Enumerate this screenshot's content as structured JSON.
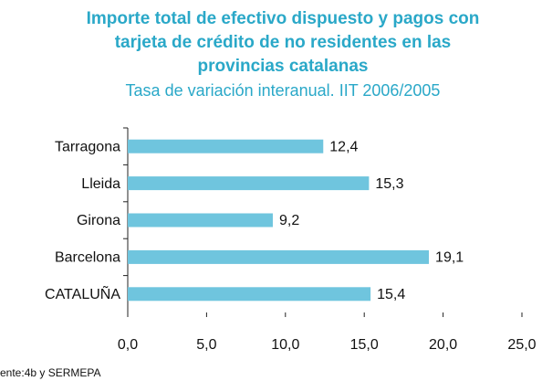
{
  "chart_data": {
    "type": "bar",
    "orientation": "horizontal",
    "title": [
      "Importe total de efectivo dispuesto y pagos con",
      "tarjeta de crédito de no residentes en las",
      "provincias catalanas"
    ],
    "subtitle": "Tasa de variación interanual. IIT 2006/2005",
    "categories": [
      "Tarragona",
      "Lleida",
      "Girona",
      "Barcelona",
      "CATALUÑA"
    ],
    "values": [
      12.4,
      15.3,
      9.2,
      19.1,
      15.4
    ],
    "value_labels": [
      "12,4",
      "15,3",
      "9,2",
      "19,1",
      "15,4"
    ],
    "color": "#6fc5de",
    "xlim": [
      0,
      25
    ],
    "xticks": [
      {
        "value": 0,
        "label": "0,0"
      },
      {
        "value": 5,
        "label": "5,0"
      },
      {
        "value": 10,
        "label": "10,0"
      },
      {
        "value": 15,
        "label": "15,0"
      },
      {
        "value": 20,
        "label": "20,0"
      },
      {
        "value": 25,
        "label": "25,0"
      }
    ],
    "source": "ente:4b y SERMEPA"
  }
}
